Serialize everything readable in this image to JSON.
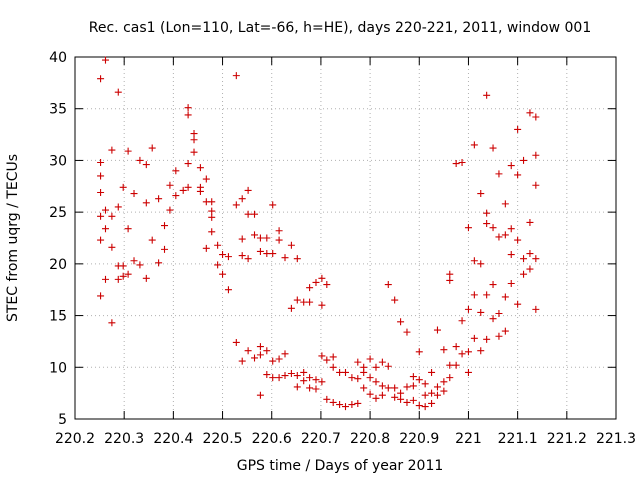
{
  "chart_data": {
    "type": "scatter",
    "title": "Rec. cas1 (Lon=110, Lat=-66, h=HE), days 220-221, 2011, window 001",
    "xlabel": "GPS time / Days of year 2011",
    "ylabel": "STEC from uqrg / TECUs",
    "xlim": [
      220.2,
      221.3
    ],
    "ylim": [
      5,
      40
    ],
    "xticks": [
      220.2,
      220.3,
      220.4,
      220.5,
      220.6,
      220.7,
      220.8,
      220.9,
      221,
      221.1,
      221.2,
      221.3
    ],
    "xtick_labels": [
      "220.2",
      "220.3",
      "220.4",
      "220.5",
      "220.6",
      "220.7",
      "220.8",
      "220.9",
      "221",
      "221.1",
      "221.2",
      "221.3"
    ],
    "yticks": [
      5,
      10,
      15,
      20,
      25,
      30,
      35,
      40
    ],
    "ytick_labels": [
      "5",
      "10",
      "15",
      "20",
      "25",
      "30",
      "35",
      "40"
    ],
    "grid": true,
    "marker": "+",
    "color": "#cc0000",
    "points": [
      [
        220.252,
        37.9
      ],
      [
        220.252,
        29.8
      ],
      [
        220.252,
        28.5
      ],
      [
        220.252,
        26.9
      ],
      [
        220.252,
        24.6
      ],
      [
        220.252,
        22.3
      ],
      [
        220.252,
        16.9
      ],
      [
        220.262,
        39.7
      ],
      [
        220.262,
        25.2
      ],
      [
        220.262,
        23.4
      ],
      [
        220.262,
        18.5
      ],
      [
        220.275,
        31.0
      ],
      [
        220.275,
        24.6
      ],
      [
        220.275,
        21.6
      ],
      [
        220.275,
        14.3
      ],
      [
        220.288,
        36.6
      ],
      [
        220.288,
        25.5
      ],
      [
        220.288,
        19.8
      ],
      [
        220.288,
        18.5
      ],
      [
        220.298,
        27.4
      ],
      [
        220.298,
        19.8
      ],
      [
        220.298,
        18.8
      ],
      [
        220.308,
        30.9
      ],
      [
        220.308,
        23.4
      ],
      [
        220.308,
        19.0
      ],
      [
        220.32,
        26.8
      ],
      [
        220.32,
        20.3
      ],
      [
        220.332,
        30.0
      ],
      [
        220.332,
        19.9
      ],
      [
        220.345,
        29.6
      ],
      [
        220.345,
        25.9
      ],
      [
        220.345,
        18.6
      ],
      [
        220.357,
        31.2
      ],
      [
        220.357,
        22.3
      ],
      [
        220.37,
        26.3
      ],
      [
        220.37,
        20.1
      ],
      [
        220.382,
        23.7
      ],
      [
        220.382,
        21.4
      ],
      [
        220.393,
        27.6
      ],
      [
        220.393,
        25.2
      ],
      [
        220.405,
        29.0
      ],
      [
        220.405,
        26.6
      ],
      [
        220.42,
        27.1
      ],
      [
        220.43,
        35.1
      ],
      [
        220.43,
        34.4
      ],
      [
        220.43,
        29.7
      ],
      [
        220.43,
        27.4
      ],
      [
        220.442,
        32.6
      ],
      [
        220.442,
        32.0
      ],
      [
        220.442,
        30.8
      ],
      [
        220.455,
        29.3
      ],
      [
        220.455,
        27.4
      ],
      [
        220.455,
        27.0
      ],
      [
        220.467,
        28.2
      ],
      [
        220.467,
        26.0
      ],
      [
        220.467,
        21.5
      ],
      [
        220.478,
        26.0
      ],
      [
        220.478,
        25.1
      ],
      [
        220.478,
        24.5
      ],
      [
        220.478,
        23.1
      ],
      [
        220.49,
        21.8
      ],
      [
        220.49,
        19.9
      ],
      [
        220.5,
        20.9
      ],
      [
        220.5,
        19.0
      ],
      [
        220.512,
        20.7
      ],
      [
        220.512,
        17.5
      ],
      [
        220.528,
        38.2
      ],
      [
        220.528,
        25.7
      ],
      [
        220.528,
        12.4
      ],
      [
        220.54,
        26.3
      ],
      [
        220.54,
        22.4
      ],
      [
        220.54,
        20.8
      ],
      [
        220.54,
        10.6
      ],
      [
        220.552,
        27.1
      ],
      [
        220.552,
        24.8
      ],
      [
        220.552,
        20.5
      ],
      [
        220.552,
        11.6
      ],
      [
        220.565,
        24.8
      ],
      [
        220.565,
        22.8
      ],
      [
        220.565,
        10.9
      ],
      [
        220.577,
        22.5
      ],
      [
        220.577,
        21.2
      ],
      [
        220.577,
        12.0
      ],
      [
        220.577,
        11.2
      ],
      [
        220.577,
        7.3
      ],
      [
        220.59,
        22.5
      ],
      [
        220.59,
        21.0
      ],
      [
        220.59,
        11.6
      ],
      [
        220.59,
        9.3
      ],
      [
        220.602,
        25.7
      ],
      [
        220.602,
        21.0
      ],
      [
        220.602,
        10.6
      ],
      [
        220.602,
        9.0
      ],
      [
        220.615,
        23.2
      ],
      [
        220.615,
        22.3
      ],
      [
        220.615,
        10.8
      ],
      [
        220.615,
        9.0
      ],
      [
        220.627,
        20.6
      ],
      [
        220.627,
        11.3
      ],
      [
        220.627,
        9.2
      ],
      [
        220.64,
        21.8
      ],
      [
        220.64,
        15.7
      ],
      [
        220.64,
        9.4
      ],
      [
        220.652,
        20.5
      ],
      [
        220.652,
        16.5
      ],
      [
        220.652,
        9.2
      ],
      [
        220.652,
        8.1
      ],
      [
        220.665,
        16.3
      ],
      [
        220.665,
        9.5
      ],
      [
        220.665,
        8.7
      ],
      [
        220.677,
        17.7
      ],
      [
        220.677,
        16.3
      ],
      [
        220.677,
        9.0
      ],
      [
        220.677,
        8.0
      ],
      [
        220.69,
        18.2
      ],
      [
        220.69,
        8.8
      ],
      [
        220.69,
        7.9
      ],
      [
        220.702,
        18.6
      ],
      [
        220.702,
        16.0
      ],
      [
        220.702,
        11.1
      ],
      [
        220.702,
        8.6
      ],
      [
        220.712,
        18.0
      ],
      [
        220.712,
        10.7
      ],
      [
        220.712,
        6.9
      ],
      [
        220.725,
        11.0
      ],
      [
        220.725,
        10.0
      ],
      [
        220.725,
        6.6
      ],
      [
        220.738,
        9.5
      ],
      [
        220.738,
        6.4
      ],
      [
        220.75,
        9.5
      ],
      [
        220.75,
        6.2
      ],
      [
        220.763,
        9.0
      ],
      [
        220.763,
        6.4
      ],
      [
        220.775,
        10.5
      ],
      [
        220.775,
        8.9
      ],
      [
        220.775,
        6.5
      ],
      [
        220.787,
        10.0
      ],
      [
        220.787,
        9.5
      ],
      [
        220.787,
        8.0
      ],
      [
        220.8,
        10.8
      ],
      [
        220.8,
        9.0
      ],
      [
        220.8,
        7.4
      ],
      [
        220.812,
        10.0
      ],
      [
        220.812,
        8.6
      ],
      [
        220.812,
        7.0
      ],
      [
        220.825,
        10.5
      ],
      [
        220.825,
        8.2
      ],
      [
        220.825,
        7.3
      ],
      [
        220.837,
        18.0
      ],
      [
        220.837,
        10.1
      ],
      [
        220.837,
        8.0
      ],
      [
        220.85,
        16.5
      ],
      [
        220.85,
        8.0
      ],
      [
        220.85,
        7.1
      ],
      [
        220.862,
        14.4
      ],
      [
        220.862,
        7.5
      ],
      [
        220.862,
        6.9
      ],
      [
        220.875,
        13.4
      ],
      [
        220.875,
        8.1
      ],
      [
        220.875,
        6.6
      ],
      [
        220.888,
        9.1
      ],
      [
        220.888,
        8.2
      ],
      [
        220.888,
        6.8
      ],
      [
        220.9,
        11.5
      ],
      [
        220.9,
        8.8
      ],
      [
        220.9,
        6.3
      ],
      [
        220.912,
        8.4
      ],
      [
        220.912,
        7.3
      ],
      [
        220.912,
        6.2
      ],
      [
        220.925,
        9.5
      ],
      [
        220.925,
        7.5
      ],
      [
        220.925,
        6.5
      ],
      [
        220.937,
        13.6
      ],
      [
        220.937,
        8.1
      ],
      [
        220.937,
        7.3
      ],
      [
        220.95,
        11.7
      ],
      [
        220.95,
        8.6
      ],
      [
        220.95,
        7.7
      ],
      [
        220.962,
        19.0
      ],
      [
        220.962,
        18.4
      ],
      [
        220.962,
        10.2
      ],
      [
        220.962,
        9.0
      ],
      [
        220.975,
        29.7
      ],
      [
        220.975,
        12.0
      ],
      [
        220.975,
        10.2
      ],
      [
        220.987,
        29.8
      ],
      [
        220.987,
        14.5
      ],
      [
        220.987,
        11.3
      ],
      [
        221.0,
        23.5
      ],
      [
        221.0,
        15.6
      ],
      [
        221.0,
        11.5
      ],
      [
        221.0,
        9.5
      ],
      [
        221.012,
        31.5
      ],
      [
        221.012,
        20.3
      ],
      [
        221.012,
        17.0
      ],
      [
        221.012,
        12.8
      ],
      [
        221.025,
        26.8
      ],
      [
        221.025,
        20.0
      ],
      [
        221.025,
        15.3
      ],
      [
        221.025,
        11.6
      ],
      [
        221.037,
        36.3
      ],
      [
        221.037,
        24.9
      ],
      [
        221.037,
        23.9
      ],
      [
        221.037,
        17.0
      ],
      [
        221.037,
        12.7
      ],
      [
        221.05,
        31.2
      ],
      [
        221.05,
        23.5
      ],
      [
        221.05,
        18.0
      ],
      [
        221.05,
        14.7
      ],
      [
        221.062,
        28.7
      ],
      [
        221.062,
        22.6
      ],
      [
        221.062,
        15.2
      ],
      [
        221.062,
        13.0
      ],
      [
        221.075,
        25.8
      ],
      [
        221.075,
        22.8
      ],
      [
        221.075,
        16.8
      ],
      [
        221.075,
        13.5
      ],
      [
        221.087,
        29.5
      ],
      [
        221.087,
        23.4
      ],
      [
        221.087,
        20.9
      ],
      [
        221.087,
        18.1
      ],
      [
        221.1,
        33.0
      ],
      [
        221.1,
        28.6
      ],
      [
        221.1,
        22.3
      ],
      [
        221.1,
        16.1
      ],
      [
        221.112,
        30.0
      ],
      [
        221.112,
        20.5
      ],
      [
        221.112,
        19.0
      ],
      [
        221.125,
        34.6
      ],
      [
        221.125,
        24.0
      ],
      [
        221.125,
        21.0
      ],
      [
        221.125,
        19.5
      ],
      [
        221.137,
        34.2
      ],
      [
        221.137,
        30.5
      ],
      [
        221.137,
        27.6
      ],
      [
        221.137,
        20.5
      ],
      [
        221.137,
        15.6
      ]
    ]
  }
}
